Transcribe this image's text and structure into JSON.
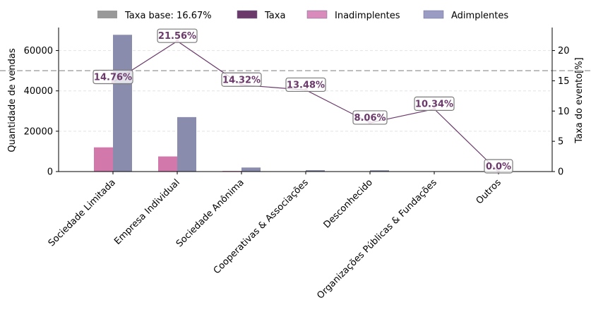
{
  "chart_data": {
    "type": "bar",
    "categories": [
      "Sociedade Limitada",
      "Empresa Individual",
      "Sociedade Anônima",
      "Cooperativas & Associações",
      "Desconhecido",
      "Organizações Públicas & Fundações",
      "Outros"
    ],
    "series": [
      {
        "name": "Inadimplentes",
        "axis": "left",
        "color": "#d278aa",
        "values": [
          12000,
          7500,
          300,
          50,
          30,
          10,
          0
        ]
      },
      {
        "name": "Adimplentes",
        "axis": "left",
        "color": "#8a8cae",
        "values": [
          67800,
          27000,
          2000,
          700,
          650,
          100,
          20
        ]
      },
      {
        "name": "Taxa",
        "axis": "right",
        "type": "line",
        "color": "#6b3a6b",
        "values": [
          14.76,
          21.56,
          14.32,
          13.48,
          8.06,
          10.34,
          0.0
        ]
      }
    ],
    "rate_labels": [
      "14.76%",
      "21.56%",
      "14.32%",
      "13.48%",
      "8.06%",
      "10.34%",
      "0.0%"
    ],
    "baseline": {
      "label": "Taxa base: 16.67%",
      "value": 16.67,
      "axis": "right",
      "color": "#a0a0a0"
    },
    "ylabel": "Quantidade de vendas",
    "ylabel_right": "Taxa do evento[%]",
    "ylim": [
      0,
      71400
    ],
    "ylim_right": [
      0,
      23.8
    ],
    "yticks": [
      0,
      20000,
      40000,
      60000
    ],
    "yticks_right": [
      0,
      5,
      10,
      15,
      20
    ],
    "grid": "horizontal-dashed",
    "legend": "top",
    "legend_items": [
      {
        "label": "Taxa base: 16.67%",
        "color": "#999999"
      },
      {
        "label": "Taxa",
        "color": "#6b3a6b"
      },
      {
        "label": "Inadimplentes",
        "color": "#d98cbb"
      },
      {
        "label": "Adimplentes",
        "color": "#9a9cc4"
      }
    ]
  }
}
